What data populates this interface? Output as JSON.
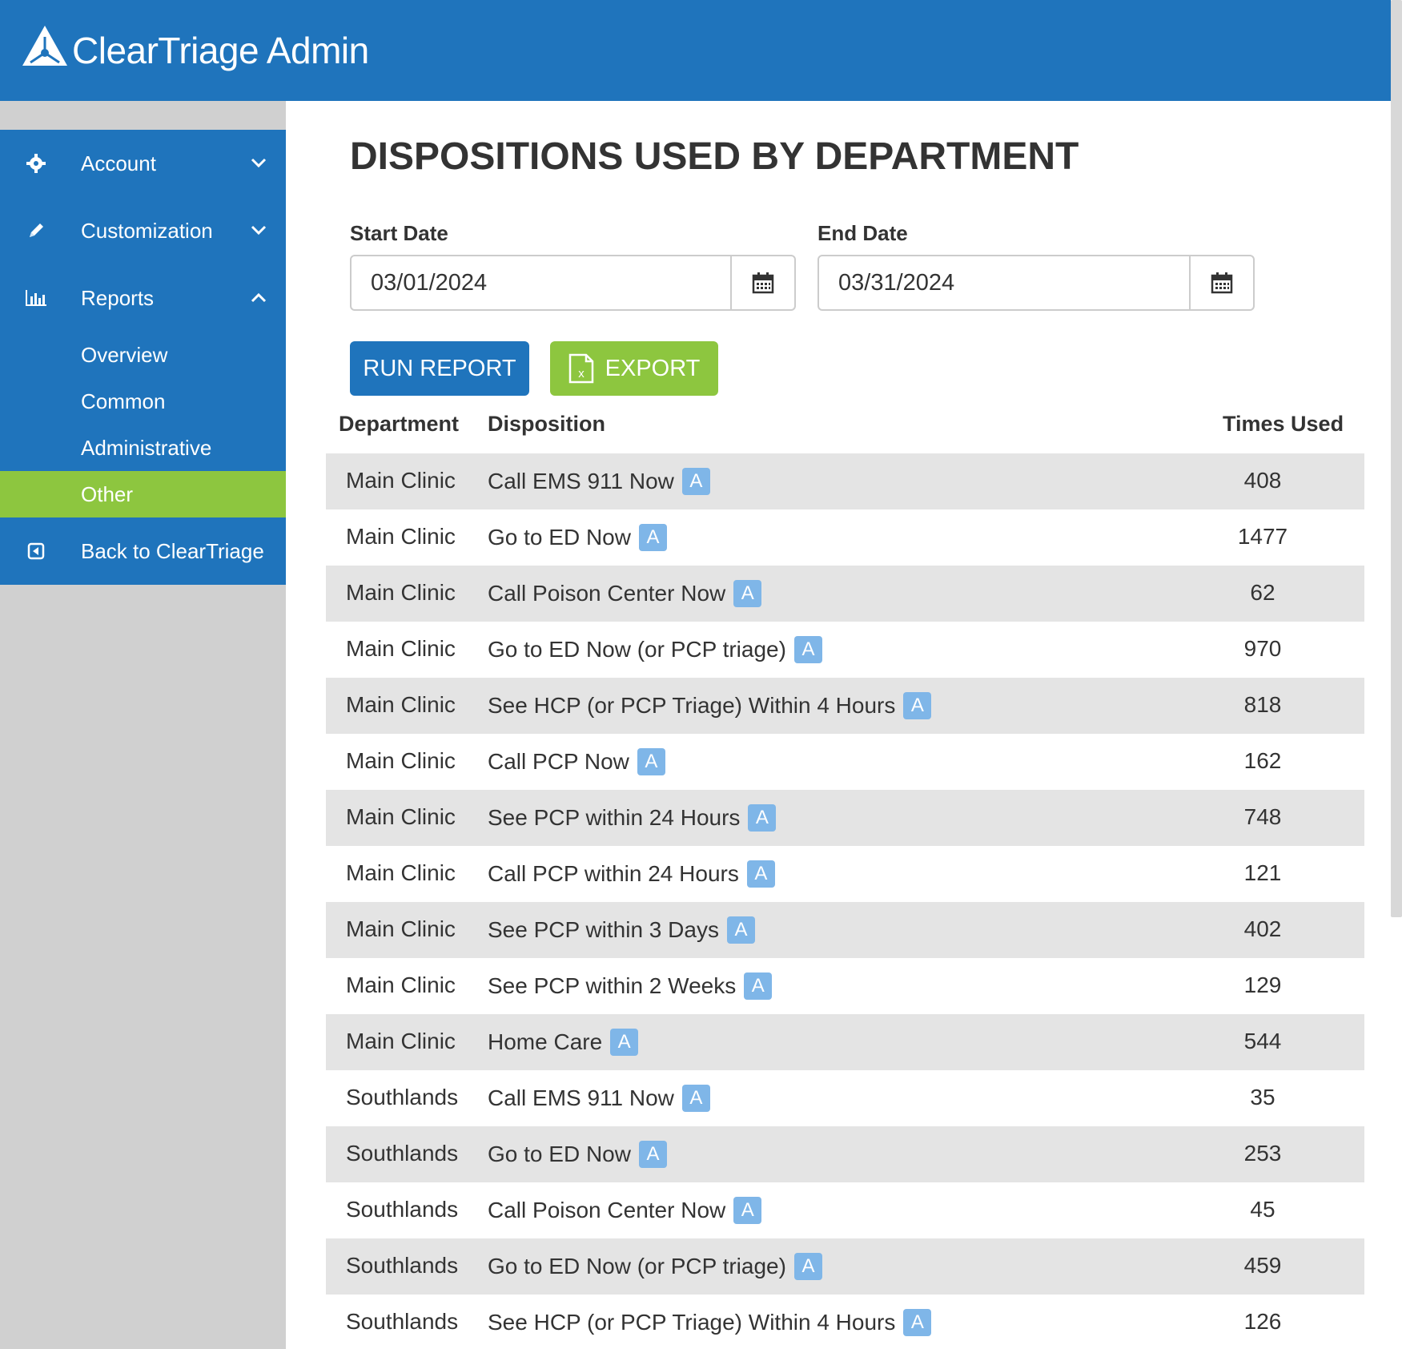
{
  "app": {
    "brand": "ClearTriage Admin"
  },
  "sidebar": {
    "items": [
      {
        "label": "Account",
        "icon": "gear-icon"
      },
      {
        "label": "Customization",
        "icon": "pencil-icon"
      },
      {
        "label": "Reports",
        "icon": "bar-chart-icon"
      }
    ],
    "reports_sub": [
      "Overview",
      "Common",
      "Administrative",
      "Other"
    ],
    "back_label": "Back to ClearTriage"
  },
  "page": {
    "title": "DISPOSITIONS USED BY DEPARTMENT",
    "start_label": "Start Date",
    "start_value": "03/01/2024",
    "end_label": "End Date",
    "end_value": "03/31/2024",
    "run_label": "RUN REPORT",
    "export_label": "EXPORT"
  },
  "table": {
    "headers": {
      "department": "Department",
      "disposition": "Disposition",
      "times": "Times Used"
    },
    "badge": "A",
    "rows": [
      {
        "dept": "Main Clinic",
        "disp": "Call EMS 911 Now",
        "count": "408"
      },
      {
        "dept": "Main Clinic",
        "disp": "Go to ED Now",
        "count": "1477"
      },
      {
        "dept": "Main Clinic",
        "disp": "Call Poison Center Now",
        "count": "62"
      },
      {
        "dept": "Main Clinic",
        "disp": "Go to ED Now (or PCP triage)",
        "count": "970"
      },
      {
        "dept": "Main Clinic",
        "disp": "See HCP (or PCP Triage) Within 4 Hours",
        "count": "818"
      },
      {
        "dept": "Main Clinic",
        "disp": "Call PCP Now",
        "count": "162"
      },
      {
        "dept": "Main Clinic",
        "disp": "See PCP within 24 Hours",
        "count": "748"
      },
      {
        "dept": "Main Clinic",
        "disp": "Call PCP within 24 Hours",
        "count": "121"
      },
      {
        "dept": "Main Clinic",
        "disp": "See PCP within 3 Days",
        "count": "402"
      },
      {
        "dept": "Main Clinic",
        "disp": "See PCP within 2 Weeks",
        "count": "129"
      },
      {
        "dept": "Main Clinic",
        "disp": "Home Care",
        "count": "544"
      },
      {
        "dept": "Southlands",
        "disp": "Call EMS 911 Now",
        "count": "35"
      },
      {
        "dept": "Southlands",
        "disp": "Go to ED Now",
        "count": "253"
      },
      {
        "dept": "Southlands",
        "disp": "Call Poison Center Now",
        "count": "45"
      },
      {
        "dept": "Southlands",
        "disp": "Go to ED Now (or PCP triage)",
        "count": "459"
      },
      {
        "dept": "Southlands",
        "disp": "See HCP (or PCP Triage) Within 4 Hours",
        "count": "126"
      }
    ]
  },
  "colors": {
    "primary": "#1f74bc",
    "accent": "#8dc63f",
    "badge": "#7fb6e8",
    "row_alt": "#e4e4e4"
  }
}
